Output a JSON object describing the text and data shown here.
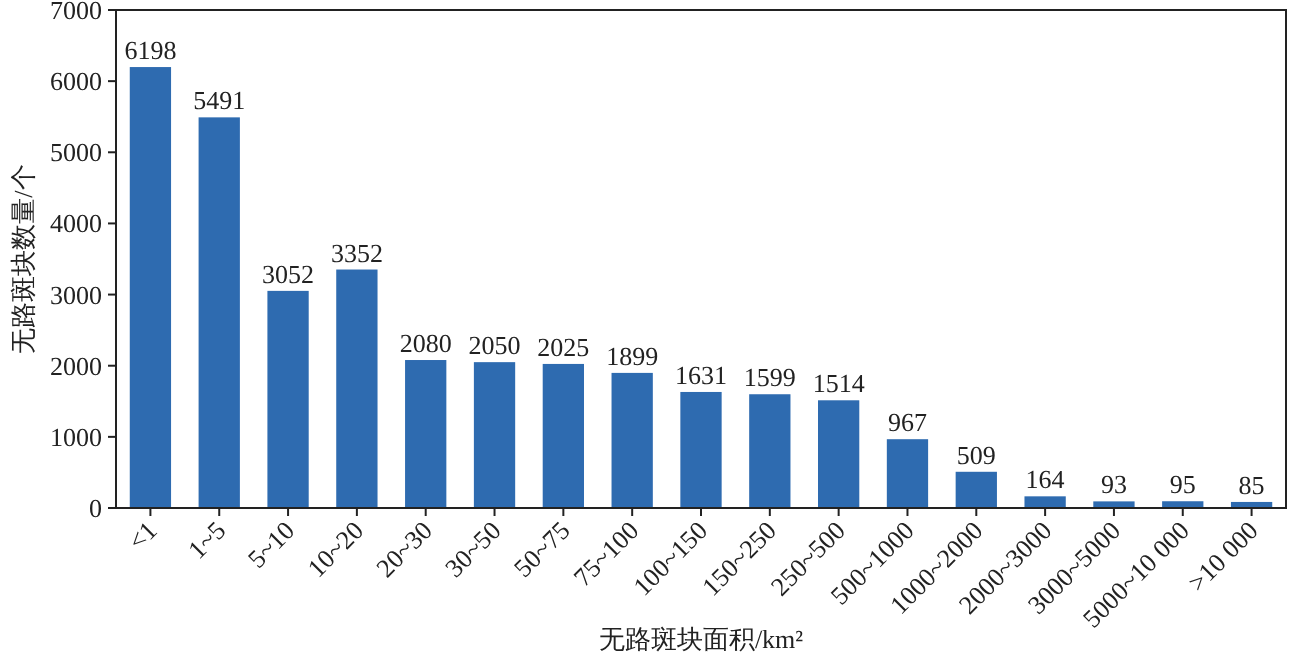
{
  "chart_data": {
    "type": "bar",
    "xlabel": "无路斑块面积/km²",
    "ylabel": "无路斑块数量/个",
    "categories": [
      "<1",
      "1~5",
      "5~10",
      "10~20",
      "20~30",
      "30~50",
      "50~75",
      "75~100",
      "100~150",
      "150~250",
      "250~500",
      "500~1000",
      "1000~2000",
      "2000~3000",
      "3000~5000",
      "5000~10 000",
      ">10 000"
    ],
    "values": [
      6198,
      5491,
      3052,
      3352,
      2080,
      2050,
      2025,
      1899,
      1631,
      1599,
      1514,
      967,
      509,
      164,
      93,
      95,
      85
    ],
    "color": "#2e6bb0",
    "ylim": [
      0,
      7000
    ],
    "yticks": [
      0,
      1000,
      2000,
      3000,
      4000,
      5000,
      6000,
      7000
    ],
    "data_labels": true
  }
}
